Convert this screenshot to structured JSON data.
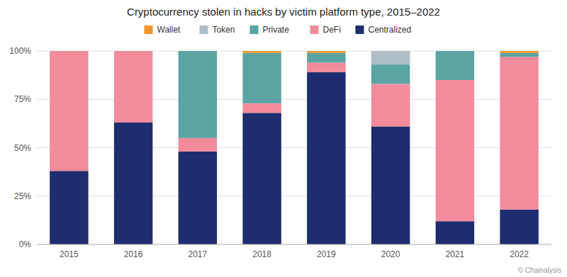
{
  "chart_data": {
    "type": "bar",
    "stacked": true,
    "title": "Cryptocurrency stolen in hacks by victim platform type, 2015–2022",
    "categories": [
      "2015",
      "2016",
      "2017",
      "2018",
      "2019",
      "2020",
      "2021",
      "2022"
    ],
    "series": [
      {
        "name": "Centralized",
        "color": "#1e2d6f",
        "values": [
          0.38,
          0.63,
          0.48,
          0.68,
          0.89,
          0.61,
          0.12,
          0.18
        ]
      },
      {
        "name": "DeFi",
        "color": "#f28b9b",
        "values": [
          0.62,
          0.37,
          0.07,
          0.05,
          0.05,
          0.22,
          0.73,
          0.79
        ]
      },
      {
        "name": "Private",
        "color": "#5aa4a4",
        "values": [
          0.0,
          0.0,
          0.45,
          0.26,
          0.05,
          0.1,
          0.15,
          0.02
        ]
      },
      {
        "name": "Token",
        "color": "#adbcc5",
        "values": [
          0.0,
          0.0,
          0.0,
          0.0,
          0.0,
          0.07,
          0.0,
          0.0
        ]
      },
      {
        "name": "Wallet",
        "color": "#f0962a",
        "values": [
          0.0,
          0.0,
          0.0,
          0.01,
          0.01,
          0.0,
          0.0,
          0.01
        ]
      }
    ],
    "ylim": [
      0,
      1.0
    ],
    "yticks": [
      {
        "value": 0,
        "label": "0%"
      },
      {
        "value": 0.25,
        "label": "25%"
      },
      {
        "value": 0.5,
        "label": "50%"
      },
      {
        "value": 0.75,
        "label": "75%"
      },
      {
        "value": 1.0,
        "label": "100%"
      }
    ],
    "grid": true,
    "legend": "top",
    "annotations": [
      "© Chainalysis"
    ]
  }
}
